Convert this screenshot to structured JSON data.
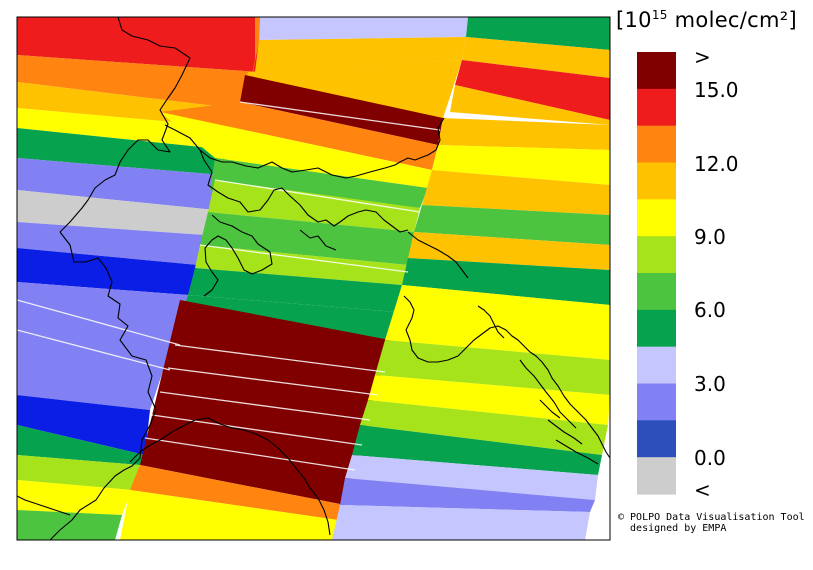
{
  "legend": {
    "unit_prefix": "[10",
    "unit_exponent": "15",
    "unit_suffix": " molec/cm²]",
    "over_label": ">",
    "under_label": "<",
    "tick_labels": [
      "15.0",
      "12.0",
      "9.0",
      "6.0",
      "3.0",
      "0.0"
    ],
    "bin_colors": [
      "#800000",
      "#ee1c1c",
      "#ff8410",
      "#ffc200",
      "#ffff00",
      "#a7e31a",
      "#4cc43f",
      "#07a24e",
      "#c6c6ff",
      "#8181f4",
      "#2d4fbc",
      "#cdcdcd"
    ]
  },
  "credit": {
    "line1": "© POLPO Data Visualisation Tool",
    "line2": "  designed by EMPA"
  },
  "palette": {
    "maroon": "#800000",
    "red": "#ee1c1c",
    "orange": "#ff8410",
    "amber": "#ffc200",
    "yellow": "#ffff00",
    "lime": "#a7e31a",
    "green": "#4cc43f",
    "darkgreen": "#07a24e",
    "lavender": "#c6c6ff",
    "periwinkle": "#8181f4",
    "blue": "#0a1ee6",
    "gray": "#cdcdcd"
  }
}
